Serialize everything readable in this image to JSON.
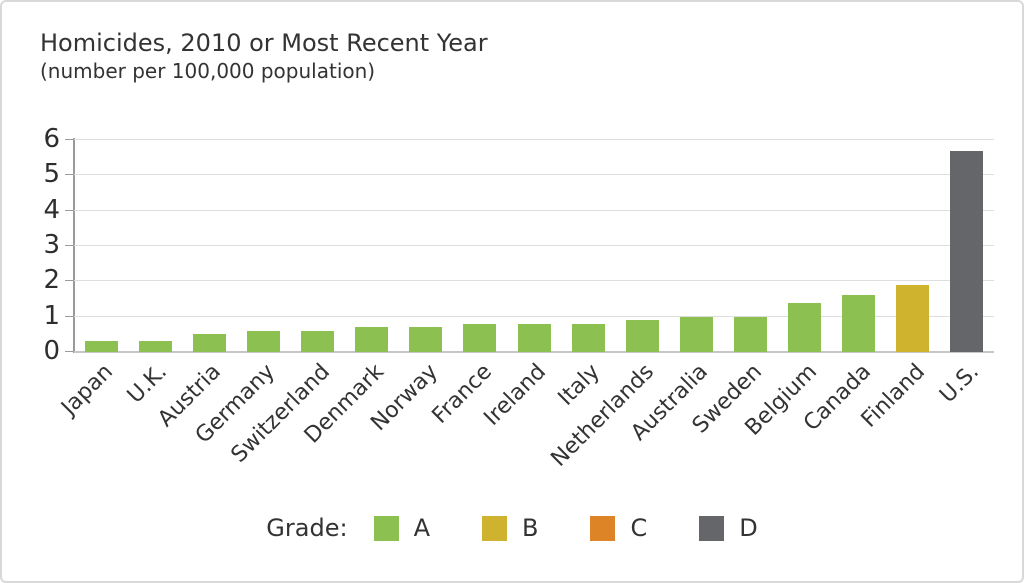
{
  "title": "Homicides, 2010 or Most Recent Year",
  "subtitle": "(number per 100,000 population)",
  "legend": {
    "label": "Grade:",
    "items": [
      {
        "label": "A",
        "color": "#8CC051"
      },
      {
        "label": "B",
        "color": "#CFB32E"
      },
      {
        "label": "C",
        "color": "#DD8427"
      },
      {
        "label": "D",
        "color": "#65666A"
      }
    ]
  },
  "grade_colors": {
    "A": "#8CC051",
    "B": "#CFB32E",
    "C": "#DD8427",
    "D": "#65666A"
  },
  "chart_data": {
    "type": "bar",
    "title": "Homicides, 2010 or Most Recent Year",
    "subtitle": "(number per 100,000 population)",
    "categories": [
      "Japan",
      "U.K.",
      "Austria",
      "Germany",
      "Switzerland",
      "Denmark",
      "Norway",
      "France",
      "Ireland",
      "Italy",
      "Netherlands",
      "Australia",
      "Sweden",
      "Belgium",
      "Canada",
      "Finland",
      "U.S."
    ],
    "values": [
      0.3,
      0.3,
      0.5,
      0.6,
      0.6,
      0.7,
      0.7,
      0.8,
      0.8,
      0.8,
      0.9,
      1.0,
      1.0,
      1.4,
      1.6,
      1.9,
      5.7
    ],
    "grades": [
      "A",
      "A",
      "A",
      "A",
      "A",
      "A",
      "A",
      "A",
      "A",
      "A",
      "A",
      "A",
      "A",
      "A",
      "A",
      "B",
      "D"
    ],
    "xlabel": "",
    "ylabel": "",
    "ylim": [
      0,
      6
    ],
    "yticks": [
      0,
      1,
      2,
      3,
      4,
      5,
      6
    ],
    "grid": true,
    "legend_title": "Grade:",
    "legend_entries": [
      "A",
      "B",
      "C",
      "D"
    ],
    "legend_position": "bottom"
  }
}
